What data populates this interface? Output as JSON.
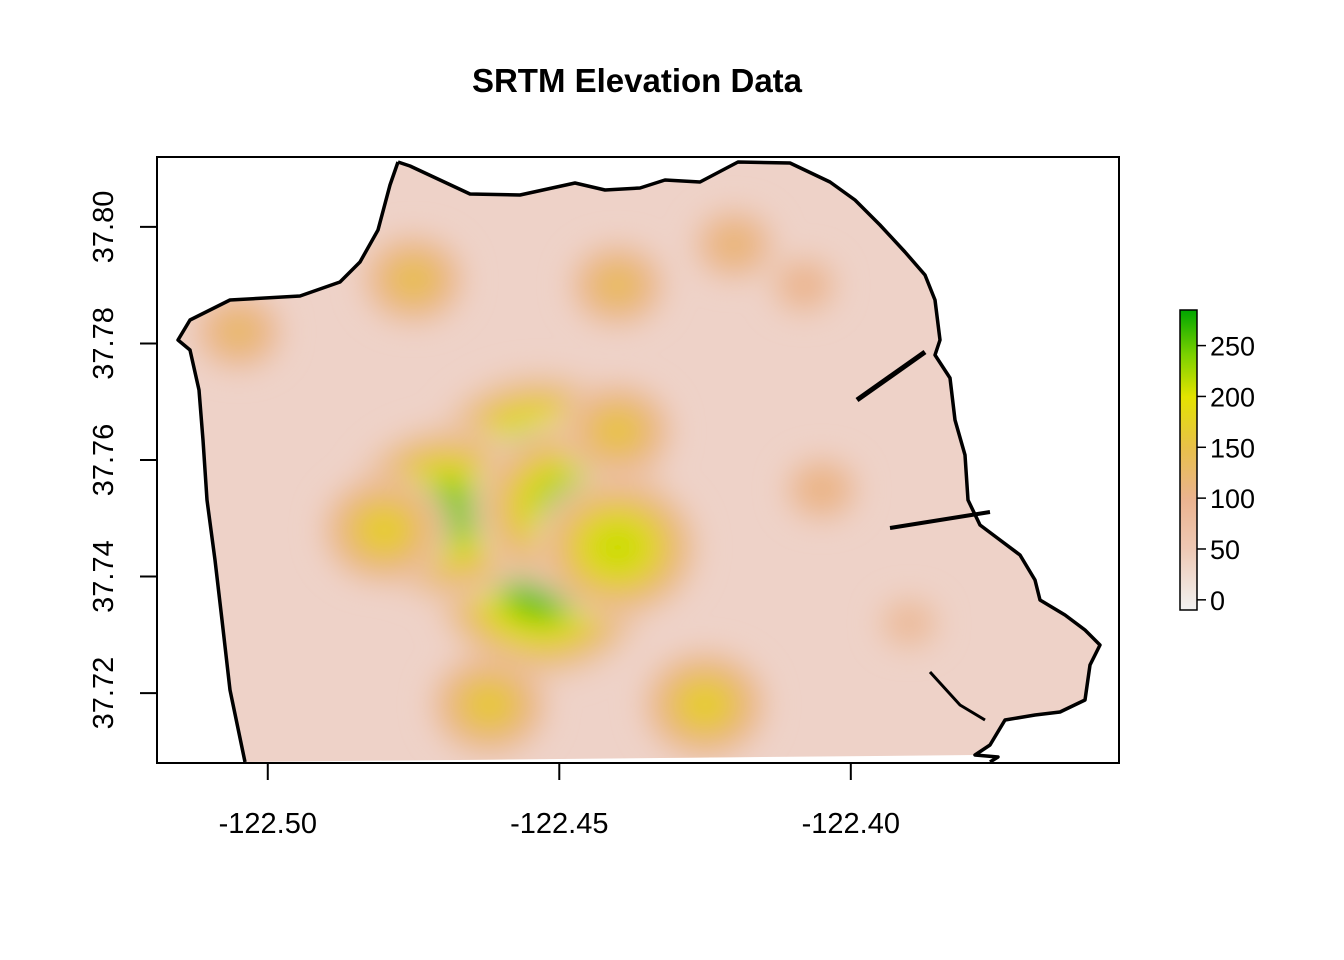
{
  "title": "SRTM Elevation Data",
  "colors": {
    "low": "#f2f2f2",
    "mid_low": "#ebb38f",
    "mid": "#e8c04a",
    "mid_high": "#e3e300",
    "high": "#00a600",
    "outline": "#000000"
  },
  "axes": {
    "x_ticks": [
      {
        "value": -122.5,
        "label": "-122.50"
      },
      {
        "value": -122.45,
        "label": "-122.45"
      },
      {
        "value": -122.4,
        "label": "-122.40"
      }
    ],
    "y_ticks": [
      {
        "value": 37.72,
        "label": "37.72"
      },
      {
        "value": 37.74,
        "label": "37.74"
      },
      {
        "value": 37.76,
        "label": "37.76"
      },
      {
        "value": 37.78,
        "label": "37.78"
      },
      {
        "value": 37.8,
        "label": "37.80"
      }
    ],
    "xlim": [
      -122.519,
      -122.354
    ],
    "ylim": [
      37.708,
      37.812
    ]
  },
  "legend": {
    "range": [
      -10,
      285
    ],
    "ticks": [
      {
        "value": 0,
        "label": "0"
      },
      {
        "value": 50,
        "label": "50"
      },
      {
        "value": 100,
        "label": "100"
      },
      {
        "value": 150,
        "label": "150"
      },
      {
        "value": 200,
        "label": "200"
      },
      {
        "value": 250,
        "label": "250"
      }
    ]
  },
  "hills": [
    {
      "lon": -122.4535,
      "lat": 37.7585,
      "elev": 280
    },
    {
      "lon": -122.453,
      "lat": 37.7385,
      "elev": 270
    },
    {
      "lon": -122.469,
      "lat": 37.751,
      "elev": 250
    },
    {
      "lon": -122.448,
      "lat": 37.752,
      "elev": 240
    },
    {
      "lon": -122.44,
      "lat": 37.745,
      "elev": 200
    },
    {
      "lon": -122.48,
      "lat": 37.748,
      "elev": 150
    },
    {
      "lon": -122.44,
      "lat": 37.765,
      "elev": 130
    },
    {
      "lon": -122.462,
      "lat": 37.718,
      "elev": 140
    },
    {
      "lon": -122.425,
      "lat": 37.718,
      "elev": 150
    },
    {
      "lon": -122.475,
      "lat": 37.791,
      "elev": 120
    },
    {
      "lon": -122.44,
      "lat": 37.79,
      "elev": 110
    },
    {
      "lon": -122.42,
      "lat": 37.797,
      "elev": 90
    },
    {
      "lon": -122.408,
      "lat": 37.79,
      "elev": 70
    },
    {
      "lon": -122.505,
      "lat": 37.782,
      "elev": 100
    },
    {
      "lon": -122.405,
      "lat": 37.755,
      "elev": 80
    },
    {
      "lon": -122.39,
      "lat": 37.732,
      "elev": 60
    }
  ]
}
